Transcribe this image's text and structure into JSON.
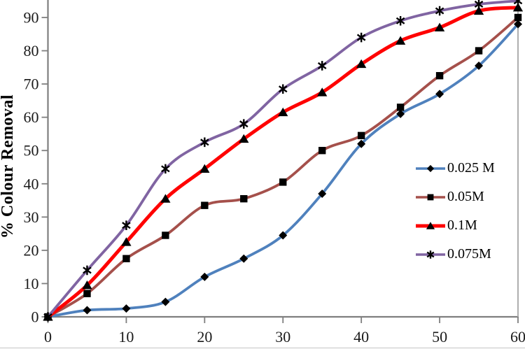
{
  "chart_data": {
    "type": "line",
    "title": "",
    "xlabel": "",
    "ylabel": "% Colour Removal",
    "x": [
      0,
      5,
      10,
      15,
      20,
      25,
      30,
      35,
      40,
      45,
      50,
      55,
      60
    ],
    "xlim": [
      0,
      60
    ],
    "ylim": [
      0,
      95.5
    ],
    "x_ticks": [
      0,
      10,
      20,
      30,
      40,
      50,
      60
    ],
    "y_ticks": [
      0,
      10,
      20,
      30,
      40,
      50,
      60,
      70,
      80,
      90
    ],
    "grid": false,
    "smooth": true,
    "legend_position": "middle-right",
    "marker_color": "#000000",
    "axis_color": "#7f7f7f",
    "border_color": "#a6a6a6",
    "text_color": "#1a1a1a",
    "series": [
      {
        "name": "0.025 M",
        "color": "#4F81BD",
        "marker": "diamond",
        "line_width": 3.8,
        "values": [
          0,
          2,
          2.5,
          4.5,
          12,
          17.5,
          24.5,
          37,
          52,
          61,
          67,
          75.5,
          88
        ]
      },
      {
        "name": "0.05M",
        "color": "#A5504B",
        "marker": "square",
        "line_width": 3.8,
        "values": [
          0,
          7,
          17.5,
          24.5,
          33.5,
          35.5,
          40.5,
          50,
          54.5,
          63,
          72.5,
          80,
          90
        ]
      },
      {
        "name": "0.1M",
        "color": "#FF0000",
        "marker": "triangle",
        "line_width": 5,
        "values": [
          0,
          9.5,
          22.5,
          35.5,
          44.5,
          53.5,
          61.5,
          67.5,
          76,
          83,
          87,
          92,
          93
        ]
      },
      {
        "name": "0.075M",
        "color": "#8064A2",
        "marker": "asterisk",
        "line_width": 3.8,
        "values": [
          0,
          14,
          27.5,
          44.5,
          52.5,
          58,
          68.5,
          75.5,
          84,
          89,
          92,
          94,
          95
        ]
      }
    ]
  }
}
